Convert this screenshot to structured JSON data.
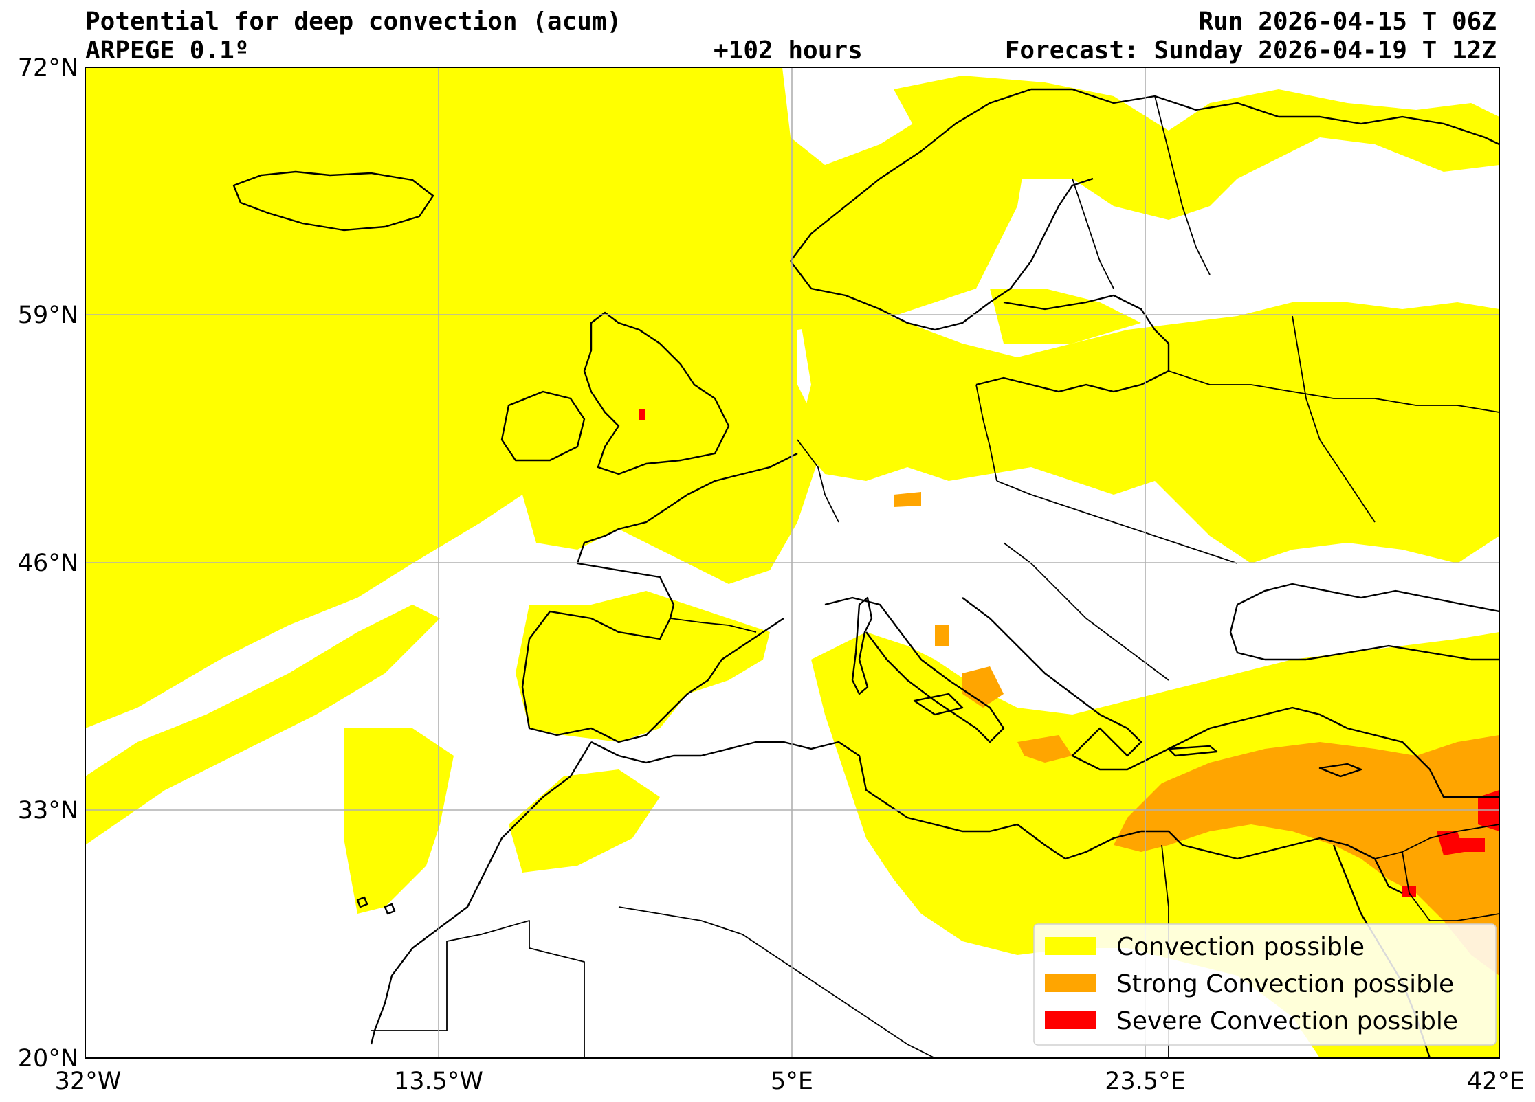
{
  "header": {
    "title": "Potential for deep convection (acum)",
    "model": "ARPEGE 0.1º",
    "run": "Run 2026-04-15 T 06Z",
    "lead_time": "+102 hours",
    "forecast": "Forecast: Sunday 2026-04-19 T 12Z"
  },
  "axes": {
    "x_ticks": [
      "32°W",
      "13.5°W",
      "5°E",
      "23.5°E",
      "42°E"
    ],
    "y_ticks": [
      "72°N",
      "59°N",
      "46°N",
      "33°N",
      "20°N"
    ],
    "lon_range": [
      -32,
      42
    ],
    "lat_range": [
      20,
      72
    ],
    "grid": true
  },
  "legend": {
    "position": "bottom-right",
    "items": [
      {
        "label": "Convection possible",
        "color": "#ffff00"
      },
      {
        "label": "Strong Convection possible",
        "color": "#ffa500"
      },
      {
        "label": "Severe Convection possible",
        "color": "#ff0000"
      }
    ]
  }
}
